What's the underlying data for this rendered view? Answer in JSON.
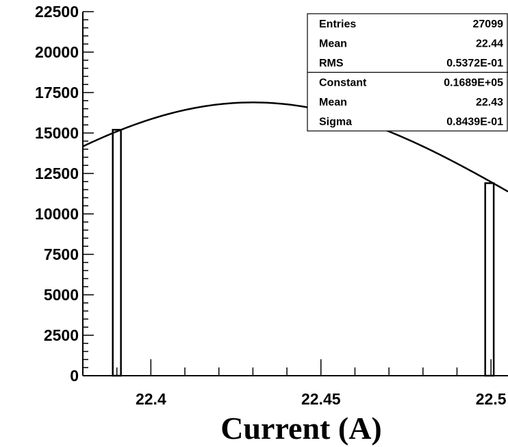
{
  "chart_data": {
    "type": "bar",
    "title": "",
    "xlabel": "Current (A)",
    "ylabel": "",
    "xlim": [
      22.38,
      22.505
    ],
    "ylim": [
      0,
      22500
    ],
    "x_ticks": [
      "22.4",
      "22.45",
      "22.5"
    ],
    "y_ticks": [
      "0",
      "2500",
      "5000",
      "7500",
      "10000",
      "12500",
      "15000",
      "17500",
      "20000",
      "22500"
    ],
    "grid": false,
    "legend": "none",
    "histogram": {
      "bins": [
        {
          "x_low": 22.3888,
          "x_high": 22.3912,
          "value": 15200
        },
        {
          "x_low": 22.4983,
          "x_high": 22.5008,
          "value": 11900
        }
      ]
    },
    "fit": {
      "type": "gaussian",
      "constant": 16890,
      "mean": 22.43,
      "sigma": 0.08439
    },
    "stats_box": {
      "rows": [
        {
          "label": "Entries",
          "value": "27099"
        },
        {
          "label": "Mean",
          "value": "22.44"
        },
        {
          "label": "RMS",
          "value": "0.5372E-01"
        },
        {
          "label": "Constant",
          "value": "0.1689E+05"
        },
        {
          "label": "Mean",
          "value": "22.43"
        },
        {
          "label": "Sigma",
          "value": "0.8439E-01"
        }
      ]
    }
  }
}
